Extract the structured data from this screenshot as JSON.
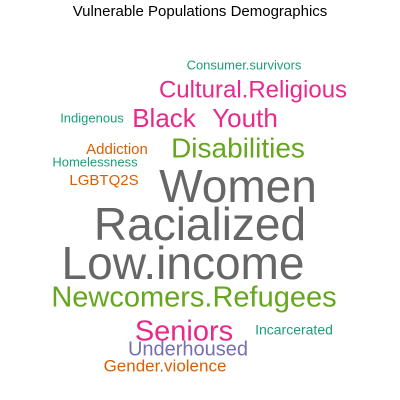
{
  "chart_data": {
    "type": "wordcloud",
    "title": "Vulnerable Populations Demographics",
    "words": [
      {
        "text": "Consumer.survivors",
        "color": "#1b9e77"
      },
      {
        "text": "Cultural.Religious",
        "color": "#e7298a"
      },
      {
        "text": "Indigenous",
        "color": "#1b9e77"
      },
      {
        "text": "Black",
        "color": "#e7298a"
      },
      {
        "text": "Youth",
        "color": "#e7298a"
      },
      {
        "text": "Addiction",
        "color": "#d95f02"
      },
      {
        "text": "Disabilities",
        "color": "#66a61e"
      },
      {
        "text": "Homelessness",
        "color": "#1b9e77"
      },
      {
        "text": "LGBTQ2S",
        "color": "#d95f02"
      },
      {
        "text": "Women",
        "color": "#666666"
      },
      {
        "text": "Racialized",
        "color": "#666666"
      },
      {
        "text": "Low.income",
        "color": "#666666"
      },
      {
        "text": "Newcomers.Refugees",
        "color": "#66a61e"
      },
      {
        "text": "Seniors",
        "color": "#e7298a"
      },
      {
        "text": "Incarcerated",
        "color": "#1b9e77"
      },
      {
        "text": "Underhoused",
        "color": "#7570b3"
      },
      {
        "text": "Gender.violence",
        "color": "#d95f02"
      }
    ]
  }
}
